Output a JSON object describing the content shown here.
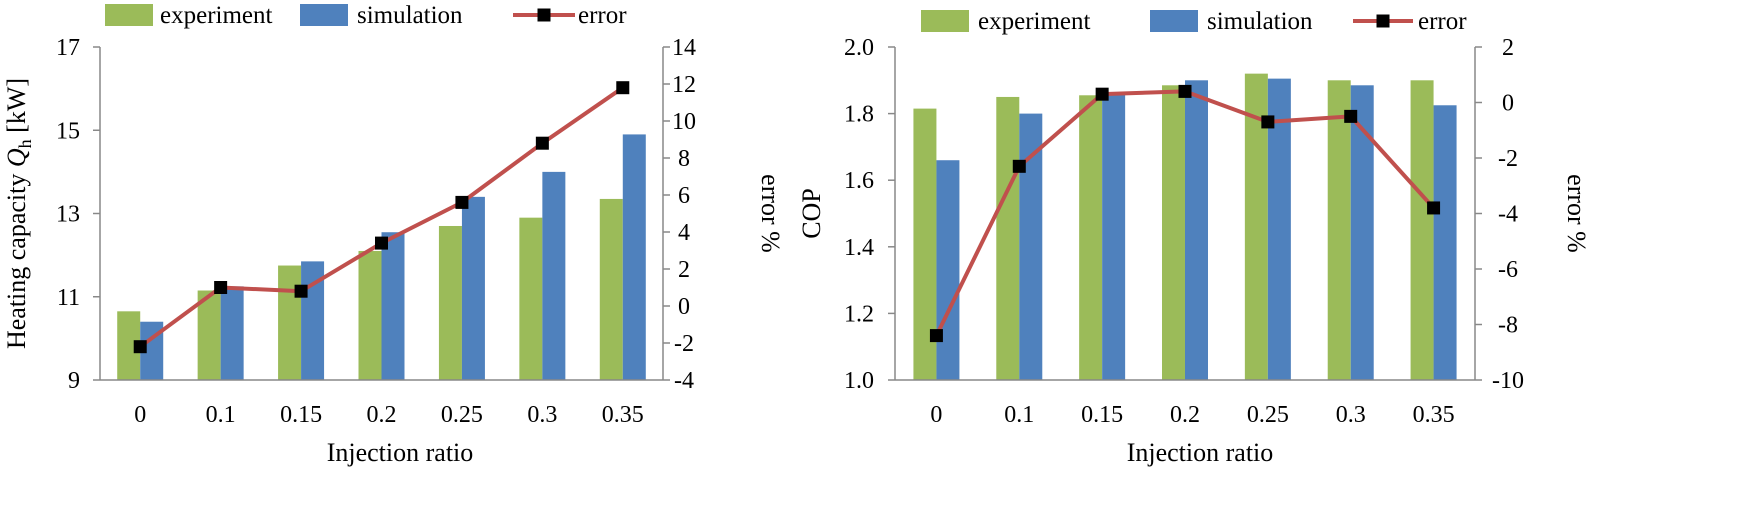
{
  "chart_data": [
    {
      "type": "bar",
      "categories": [
        "0",
        "0.1",
        "0.15",
        "0.2",
        "0.25",
        "0.3",
        "0.35"
      ],
      "xlabel": "Injection  ratio",
      "ylabel_prefix": "Heating  capacity  ",
      "ylabel_var": "Q",
      "ylabel_sub": "h",
      "ylabel_suffix": " [kW]",
      "y2label": "error %",
      "ylim": [
        9,
        17
      ],
      "yticks": [
        9,
        11,
        13,
        15,
        17
      ],
      "y2lim": [
        -4,
        14
      ],
      "y2ticks": [
        -4,
        -2,
        0,
        2,
        4,
        6,
        8,
        10,
        12,
        14
      ],
      "legend": [
        "experiment",
        "simulation",
        "error"
      ],
      "legend_position": "top",
      "grid": false,
      "series": [
        {
          "name": "experiment",
          "type": "bar",
          "axis": "left",
          "color": "#9BBB59",
          "values": [
            10.65,
            11.15,
            11.75,
            12.1,
            12.7,
            12.9,
            13.35
          ]
        },
        {
          "name": "simulation",
          "type": "bar",
          "axis": "left",
          "color": "#4F81BD",
          "values": [
            10.4,
            11.25,
            11.85,
            12.55,
            13.4,
            14.0,
            14.9
          ]
        },
        {
          "name": "error",
          "type": "line",
          "axis": "right",
          "color": "#C0504D",
          "marker_color": "#000000",
          "values": [
            -2.2,
            1.0,
            0.8,
            3.4,
            5.6,
            8.8,
            11.8
          ]
        }
      ]
    },
    {
      "type": "bar",
      "categories": [
        "0",
        "0.1",
        "0.15",
        "0.2",
        "0.25",
        "0.3",
        "0.35"
      ],
      "xlabel": "Injection  ratio",
      "ylabel": "COP",
      "y2label": "error %",
      "ylim": [
        1.0,
        2.0
      ],
      "yticks": [
        "1.0",
        "1.2",
        "1.4",
        "1.6",
        "1.8",
        "2.0"
      ],
      "y2lim": [
        -10,
        2
      ],
      "y2ticks": [
        -10,
        -8,
        -6,
        -4,
        -2,
        0,
        2
      ],
      "legend": [
        "experiment",
        "simulation",
        "error"
      ],
      "legend_position": "top",
      "grid": false,
      "series": [
        {
          "name": "experiment",
          "type": "bar",
          "axis": "left",
          "color": "#9BBB59",
          "values": [
            1.815,
            1.85,
            1.855,
            1.885,
            1.92,
            1.9,
            1.9
          ]
        },
        {
          "name": "simulation",
          "type": "bar",
          "axis": "left",
          "color": "#4F81BD",
          "values": [
            1.66,
            1.8,
            1.86,
            1.9,
            1.905,
            1.885,
            1.825
          ]
        },
        {
          "name": "error",
          "type": "line",
          "axis": "right",
          "color": "#C0504D",
          "marker_color": "#000000",
          "values": [
            -8.4,
            -2.3,
            0.3,
            0.4,
            -0.7,
            -0.5,
            -3.8
          ]
        }
      ]
    }
  ]
}
